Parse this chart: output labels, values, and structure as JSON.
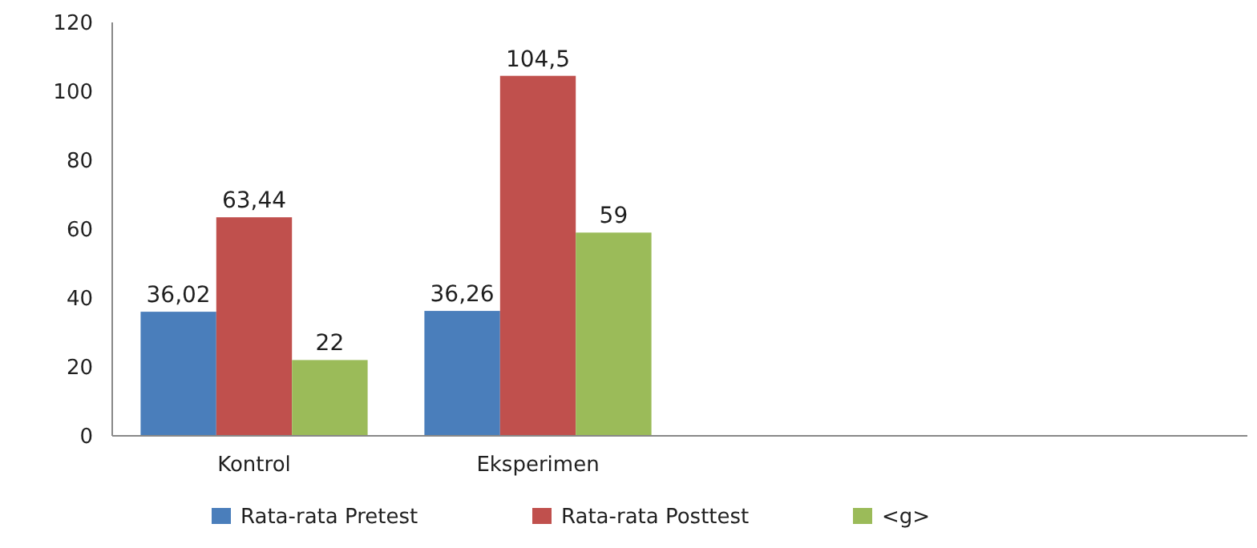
{
  "chart_data": {
    "type": "bar",
    "categories": [
      "Kontrol",
      "Eksperimen",
      null,
      null
    ],
    "series": [
      {
        "name": "Rata-rata Pretest",
        "color": "#4a7ebb",
        "values": [
          36.02,
          36.26,
          null,
          null
        ],
        "value_labels": [
          "36,02",
          "36,26",
          null,
          null
        ]
      },
      {
        "name": "Rata-rata Posttest",
        "color": "#c0504d",
        "values": [
          63.44,
          104.5,
          null,
          null
        ],
        "value_labels": [
          "63,44",
          "104,5",
          null,
          null
        ]
      },
      {
        "name": "<g>",
        "color": "#9bbb59",
        "values": [
          22,
          59,
          null,
          null
        ],
        "value_labels": [
          "22",
          "59",
          null,
          null
        ]
      }
    ],
    "ylim": [
      0,
      120
    ],
    "yticks": [
      0,
      20,
      40,
      60,
      80,
      100,
      120
    ],
    "grid": false,
    "legend": "bottom"
  }
}
